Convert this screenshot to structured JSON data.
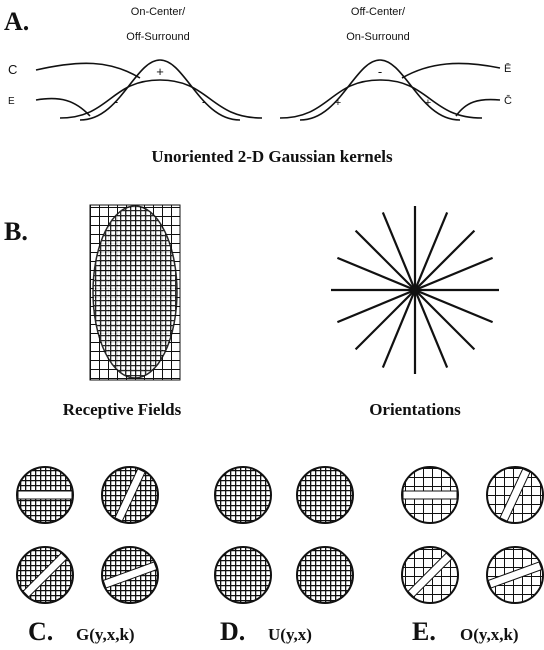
{
  "panel_a": {
    "label": "A.",
    "kernels": [
      {
        "title_lines": [
          "On-Center/",
          "Off-Surround"
        ],
        "inputs": [
          "C",
          "E"
        ],
        "signs": [
          "+",
          "-",
          "-"
        ]
      },
      {
        "title_lines": [
          "Off-Center/",
          "On-Surround"
        ],
        "inputs": [
          "Ē",
          "C̄"
        ],
        "signs": [
          "-",
          "+",
          "+"
        ]
      }
    ],
    "caption": "Unoriented 2-D Gaussian kernels"
  },
  "panel_b": {
    "label": "B.",
    "captions": [
      "Receptive Fields",
      "Orientations"
    ]
  },
  "bottom_panels": [
    {
      "label": "C.",
      "formula": "G(y,x,k)"
    },
    {
      "label": "D.",
      "formula": "U(y,x)"
    },
    {
      "label": "E.",
      "formula": "O(y,x,k)"
    }
  ]
}
